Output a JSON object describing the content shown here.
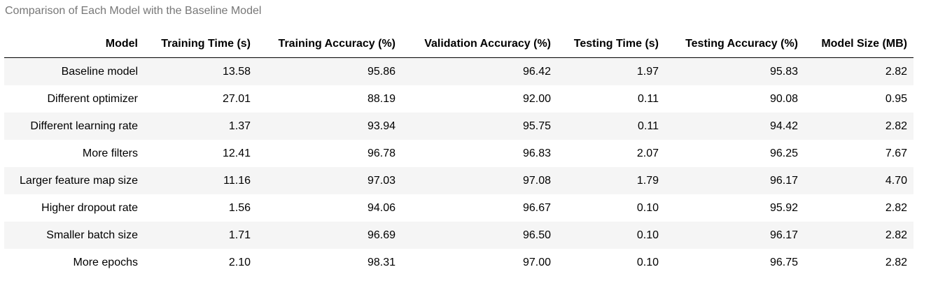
{
  "caption": "Comparison of Each Model with the Baseline Model",
  "table": {
    "columns": [
      "Model",
      "Training Time (s)",
      "Training Accuracy (%)",
      "Validation Accuracy (%)",
      "Testing Time (s)",
      "Testing Accuracy (%)",
      "Model Size (MB)"
    ],
    "rows": [
      [
        "Baseline model",
        "13.58",
        "95.86",
        "96.42",
        "1.97",
        "95.83",
        "2.82"
      ],
      [
        "Different optimizer",
        "27.01",
        "88.19",
        "92.00",
        "0.11",
        "90.08",
        "0.95"
      ],
      [
        "Different learning rate",
        "1.37",
        "93.94",
        "95.75",
        "0.11",
        "94.42",
        "2.82"
      ],
      [
        "More filters",
        "12.41",
        "96.78",
        "96.83",
        "2.07",
        "96.25",
        "7.67"
      ],
      [
        "Larger feature map size",
        "11.16",
        "97.03",
        "97.08",
        "1.79",
        "96.17",
        "4.70"
      ],
      [
        "Higher dropout rate",
        "1.56",
        "94.06",
        "96.67",
        "0.10",
        "95.92",
        "2.82"
      ],
      [
        "Smaller batch size",
        "1.71",
        "96.69",
        "96.50",
        "0.10",
        "96.17",
        "2.82"
      ],
      [
        "More epochs",
        "2.10",
        "98.31",
        "97.00",
        "0.10",
        "96.75",
        "2.82"
      ]
    ]
  }
}
